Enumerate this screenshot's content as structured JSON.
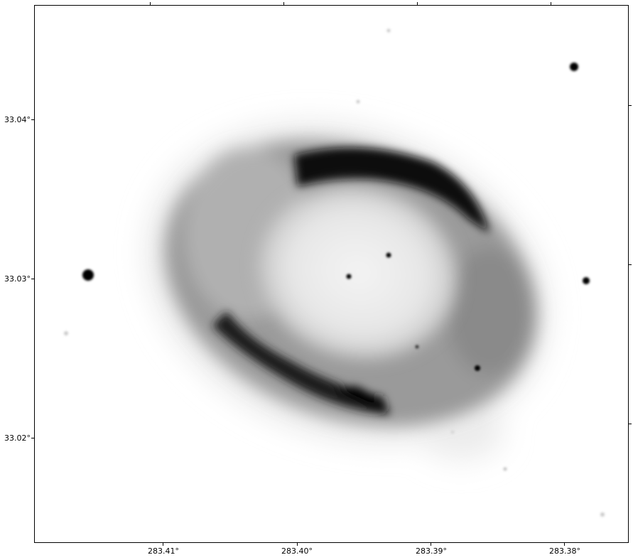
{
  "axes": {
    "x_ticks": [
      "283.41°",
      "283.40°",
      "283.39°",
      "283.38°"
    ],
    "y_ticks": [
      "33.04°",
      "33.03°",
      "33.02°"
    ],
    "colormap": "gray_r",
    "background": "#ffffff",
    "frame": "#000000"
  },
  "image": {
    "subject": "ring-nebula-icon"
  }
}
